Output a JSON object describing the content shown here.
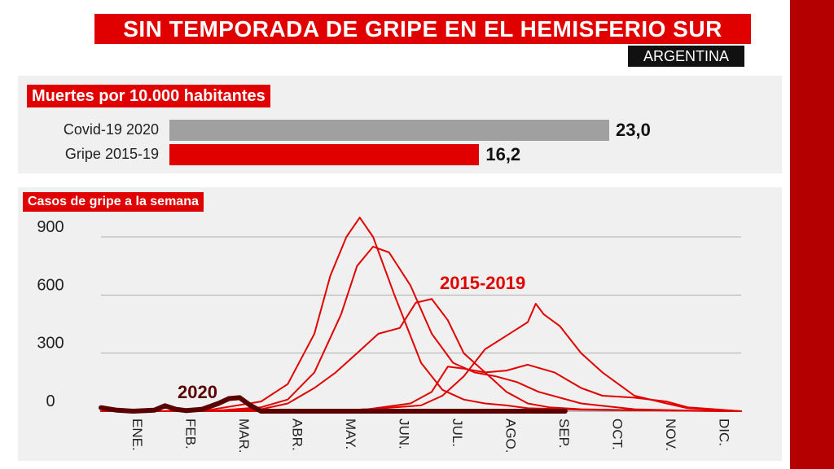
{
  "header": {
    "title": "SIN TEMPORADA DE GRIPE EN EL HEMISFERIO SUR",
    "country": "ARGENTINA"
  },
  "deaths": {
    "heading": "Muertes por 10.000 habitantes",
    "bars": [
      {
        "label": "Covid-19 2020",
        "value": 23.0,
        "value_label": "23,0",
        "color": "#a0a0a0"
      },
      {
        "label": "Gripe 2015-19",
        "value": 16.2,
        "value_label": "16,2",
        "color": "#e00000"
      }
    ],
    "max": 23.0
  },
  "chart_data": {
    "type": "line",
    "title": "Casos de gripe a la semana",
    "ylim": [
      0,
      900
    ],
    "yticks": [
      0,
      300,
      600,
      900
    ],
    "ytick_labels": [
      "0",
      "300",
      "600",
      "900"
    ],
    "xlim": [
      0,
      12
    ],
    "months": [
      "ENE.",
      "FEB.",
      "MAR.",
      "ABR.",
      "MAY.",
      "JUN.",
      "JUL.",
      "AGO.",
      "SEP.",
      "OCT.",
      "NOV.",
      "DIC."
    ],
    "annotations": [
      {
        "text": "2015-2019",
        "color": "#e00000"
      },
      {
        "text": "2020",
        "color": "#5a0000"
      }
    ],
    "series": [
      {
        "name": "2015-2019 (a)",
        "color": "#e00000",
        "x": [
          0,
          1,
          2,
          3,
          3.5,
          4,
          4.3,
          4.6,
          4.85,
          5.1,
          5.5,
          6,
          6.4,
          6.8,
          7.2,
          7.6,
          8,
          9,
          10,
          11,
          12
        ],
        "y": [
          0,
          0,
          5,
          50,
          140,
          400,
          700,
          900,
          1000,
          900,
          600,
          250,
          110,
          60,
          40,
          30,
          15,
          8,
          5,
          2,
          0
        ]
      },
      {
        "name": "2015-2019 (b)",
        "color": "#e00000",
        "x": [
          0,
          1,
          2,
          3,
          3.5,
          4,
          4.5,
          4.8,
          5.1,
          5.4,
          5.8,
          6.2,
          6.6,
          7,
          7.4,
          7.8,
          8.2,
          9,
          10,
          11,
          12
        ],
        "y": [
          0,
          0,
          0,
          20,
          60,
          200,
          500,
          750,
          850,
          820,
          650,
          400,
          250,
          200,
          180,
          150,
          100,
          40,
          10,
          3,
          0
        ]
      },
      {
        "name": "2015-2019 (c)",
        "color": "#e00000",
        "x": [
          0,
          1,
          2,
          3,
          3.5,
          4,
          4.4,
          4.8,
          5.2,
          5.6,
          5.9,
          6.2,
          6.5,
          6.8,
          7.2,
          7.6,
          8,
          8.4,
          9,
          10,
          11,
          12
        ],
        "y": [
          0,
          0,
          0,
          10,
          40,
          120,
          200,
          300,
          400,
          430,
          560,
          580,
          470,
          300,
          200,
          100,
          40,
          20,
          10,
          5,
          2,
          0
        ]
      },
      {
        "name": "2015-2019 (d)",
        "color": "#e00000",
        "x": [
          0,
          1,
          2,
          3,
          4,
          5,
          5.8,
          6.2,
          6.5,
          6.8,
          7.2,
          7.6,
          8,
          8.5,
          9,
          9.4,
          10,
          10.6,
          11,
          12
        ],
        "y": [
          0,
          0,
          0,
          0,
          0,
          10,
          40,
          100,
          230,
          220,
          200,
          210,
          240,
          200,
          120,
          80,
          70,
          50,
          20,
          0
        ]
      },
      {
        "name": "2015-2019 (e)",
        "color": "#e00000",
        "x": [
          0,
          1,
          2,
          3,
          4,
          5,
          6,
          6.4,
          6.8,
          7.2,
          7.6,
          8,
          8.15,
          8.3,
          8.6,
          9,
          9.4,
          10,
          10.6,
          11,
          12
        ],
        "y": [
          0,
          0,
          0,
          0,
          0,
          10,
          30,
          80,
          180,
          320,
          390,
          460,
          555,
          500,
          440,
          300,
          200,
          80,
          40,
          15,
          0
        ]
      },
      {
        "name": "2020",
        "color": "#5a0000",
        "x": [
          0,
          0.3,
          0.6,
          1,
          1.2,
          1.4,
          1.6,
          1.9,
          2.2,
          2.4,
          2.6,
          2.8,
          3,
          3.3,
          4,
          5,
          6,
          7,
          8,
          8.7
        ],
        "y": [
          18,
          5,
          0,
          5,
          28,
          10,
          3,
          10,
          40,
          65,
          70,
          30,
          0,
          0,
          0,
          0,
          0,
          0,
          0,
          0
        ]
      }
    ]
  }
}
